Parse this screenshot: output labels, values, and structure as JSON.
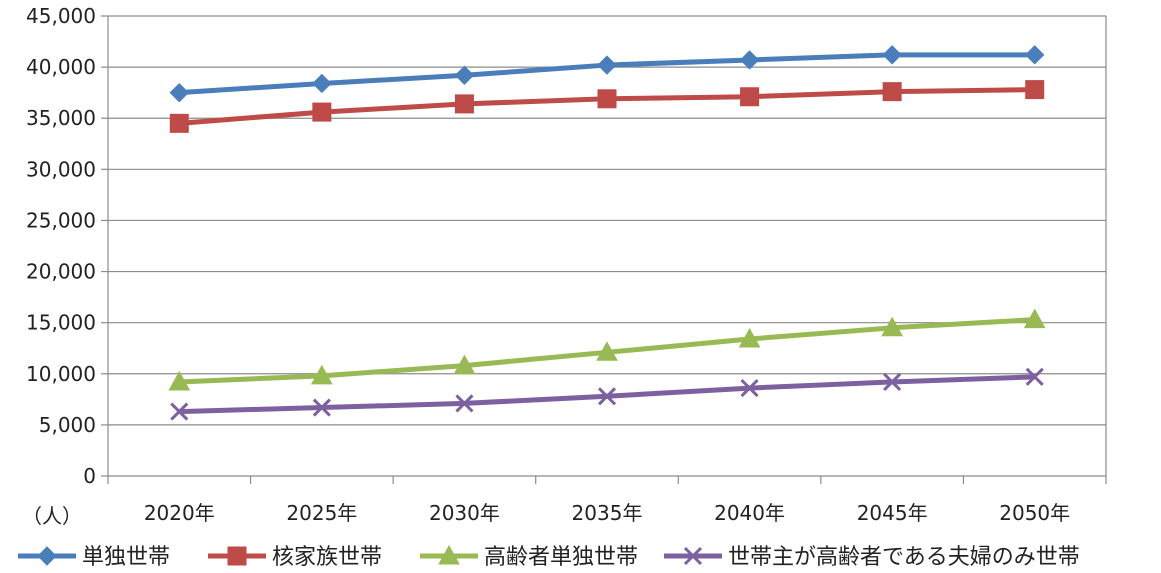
{
  "chart_data": {
    "type": "line",
    "categories": [
      "2020年",
      "2025年",
      "2030年",
      "2035年",
      "2040年",
      "2045年",
      "2050年"
    ],
    "ylim": [
      0,
      45000
    ],
    "yticks": [
      0,
      5000,
      10000,
      15000,
      20000,
      25000,
      30000,
      35000,
      40000,
      45000
    ],
    "ytick_labels": [
      "0",
      "5,000",
      "10,000",
      "15,000",
      "20,000",
      "25,000",
      "30,000",
      "35,000",
      "40,000",
      "45,000"
    ],
    "ylabel": "（人）",
    "grid": true,
    "legend_position": "bottom",
    "series": [
      {
        "name": "単独世帯",
        "marker": "diamond",
        "color": "#4a7ebb",
        "values": [
          37500,
          38400,
          39200,
          40200,
          40700,
          41200,
          41200
        ]
      },
      {
        "name": "核家族世帯",
        "marker": "square",
        "color": "#be4b48",
        "values": [
          34500,
          35600,
          36400,
          36900,
          37100,
          37600,
          37800
        ]
      },
      {
        "name": "高齢者単独世帯",
        "marker": "triangle",
        "color": "#98b954",
        "values": [
          9200,
          9800,
          10800,
          12100,
          13400,
          14500,
          15300
        ]
      },
      {
        "name": "世帯主が高齢者である夫婦のみ世帯",
        "marker": "x",
        "color": "#7d60a0",
        "values": [
          6300,
          6700,
          7100,
          7800,
          8600,
          9200,
          9700
        ]
      }
    ]
  }
}
